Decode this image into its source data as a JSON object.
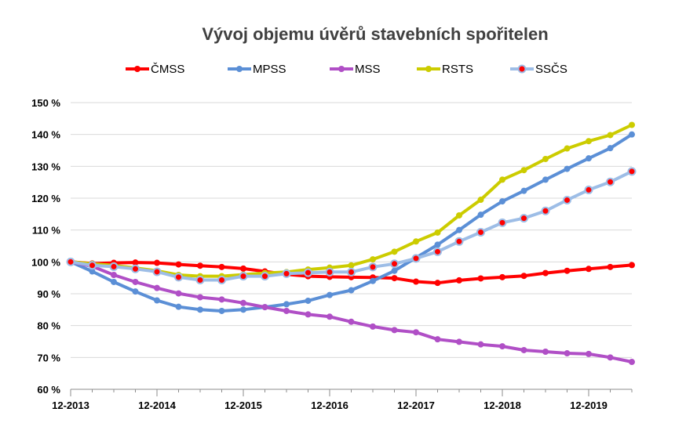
{
  "chart_data": {
    "type": "line",
    "title": "Vývoj objemu úvěrů stavebních spořitelen",
    "xlabel": "",
    "ylabel": "",
    "ylim": [
      60,
      150
    ],
    "y_ticks": [
      60,
      70,
      80,
      90,
      100,
      110,
      120,
      130,
      140,
      150
    ],
    "y_tick_labels": [
      "60 %",
      "70 %",
      "80 %",
      "90 %",
      "100 %",
      "110 %",
      "120 %",
      "130 %",
      "140 %",
      "150 %"
    ],
    "x_tick_labels": [
      "12-2013",
      "12-2014",
      "12-2015",
      "12-2016",
      "12-2017",
      "12-2018",
      "12-2019"
    ],
    "x_tick_positions": [
      0,
      4,
      8,
      12,
      16,
      20,
      24
    ],
    "x": [
      0,
      1,
      2,
      3,
      4,
      5,
      6,
      7,
      8,
      9,
      10,
      11,
      12,
      13,
      14,
      15,
      16,
      17,
      18,
      19,
      20,
      21,
      22,
      23,
      24,
      25,
      26
    ],
    "grid": "horizontal",
    "legend_position": "top",
    "series": [
      {
        "name": "ČMSS",
        "color": "#ff0000",
        "marker": "dot",
        "values": [
          100,
          99.5,
          99.7,
          99.8,
          99.7,
          99.2,
          98.8,
          98.4,
          97.9,
          97.0,
          96.1,
          95.5,
          95.3,
          95.2,
          95.1,
          94.9,
          93.8,
          93.4,
          94.2,
          94.8,
          95.2,
          95.6,
          96.5,
          97.2,
          97.8,
          98.4,
          99.0
        ]
      },
      {
        "name": "MPSS",
        "color": "#5b8fd6",
        "marker": "dot",
        "values": [
          100,
          97.0,
          93.7,
          90.7,
          87.9,
          85.9,
          85.0,
          84.6,
          85.0,
          85.8,
          86.7,
          87.8,
          89.6,
          91.1,
          94.0,
          97.2,
          101.3,
          105.4,
          110.0,
          114.8,
          119.0,
          122.3,
          125.8,
          129.2,
          132.5,
          135.7,
          140.0
        ]
      },
      {
        "name": "MSS",
        "color": "#b04fc6",
        "marker": "dot",
        "values": [
          100,
          98.6,
          95.9,
          93.7,
          91.8,
          90.1,
          88.9,
          88.2,
          87.1,
          85.8,
          84.6,
          83.5,
          82.8,
          81.2,
          79.7,
          78.6,
          77.9,
          75.7,
          74.9,
          74.1,
          73.5,
          72.3,
          71.8,
          71.3,
          71.1,
          70.0,
          68.6
        ]
      },
      {
        "name": "RSTS",
        "color": "#cccc00",
        "marker": "dot",
        "values": [
          100,
          99.4,
          98.9,
          98.1,
          97.2,
          95.9,
          95.5,
          95.5,
          96.0,
          96.5,
          96.8,
          97.6,
          98.2,
          98.9,
          100.8,
          103.2,
          106.4,
          109.2,
          114.6,
          119.5,
          125.8,
          128.8,
          132.3,
          135.6,
          137.9,
          139.8,
          143.0
        ]
      },
      {
        "name": "SSČS",
        "color": "#9dbde6",
        "marker": "dot-red-center",
        "values": [
          100,
          98.9,
          98.5,
          97.8,
          96.9,
          95.2,
          94.3,
          94.3,
          95.5,
          95.5,
          96.3,
          96.6,
          96.8,
          96.8,
          98.4,
          99.4,
          101.1,
          103.2,
          106.4,
          109.3,
          112.3,
          113.7,
          116.0,
          119.4,
          122.6,
          125.1,
          128.4
        ]
      }
    ]
  }
}
